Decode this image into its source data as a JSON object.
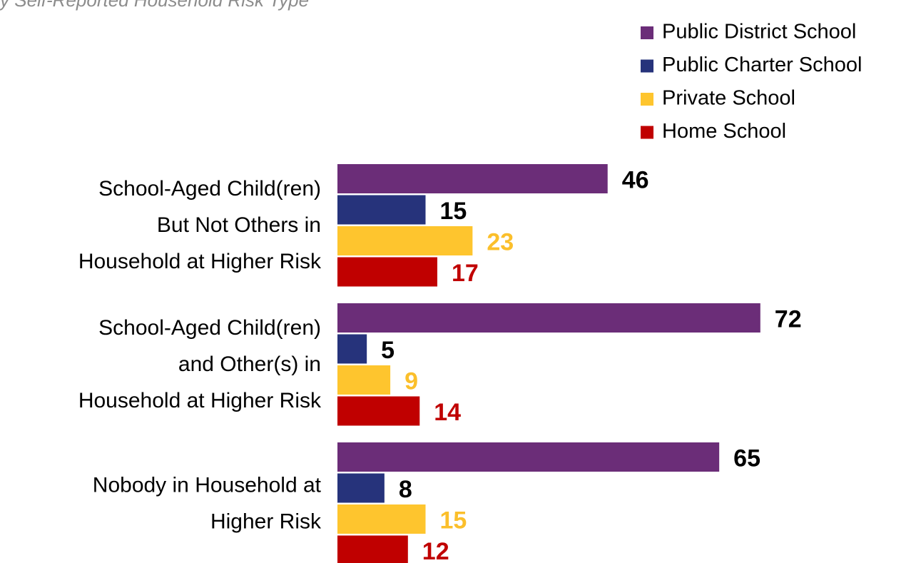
{
  "chart_data": {
    "type": "barh",
    "title": "y Self-Reported Household Risk Type",
    "categories": [
      [
        "School-Aged Child(ren)",
        "But Not Others in",
        "Household at Higher Risk"
      ],
      [
        "School-Aged Child(ren)",
        "and Other(s) in",
        "Household at Higher Risk"
      ],
      [
        "Nobody in Household at",
        "Higher Risk"
      ]
    ],
    "series": [
      {
        "name": "Public District School",
        "color": "#6b2d78",
        "label_color": "#000000",
        "values": [
          46,
          72,
          65
        ]
      },
      {
        "name": "Public Charter School",
        "color": "#26337b",
        "label_color": "#000000",
        "values": [
          15,
          5,
          8
        ]
      },
      {
        "name": "Private School",
        "color": "#fec52e",
        "label_color": "#fbbf2b",
        "values": [
          23,
          9,
          15
        ]
      },
      {
        "name": "Home School",
        "color": "#c00000",
        "label_color": "#c00000",
        "values": [
          17,
          14,
          12
        ]
      }
    ],
    "xlim": [
      0,
      90
    ],
    "legend": "top-right"
  }
}
